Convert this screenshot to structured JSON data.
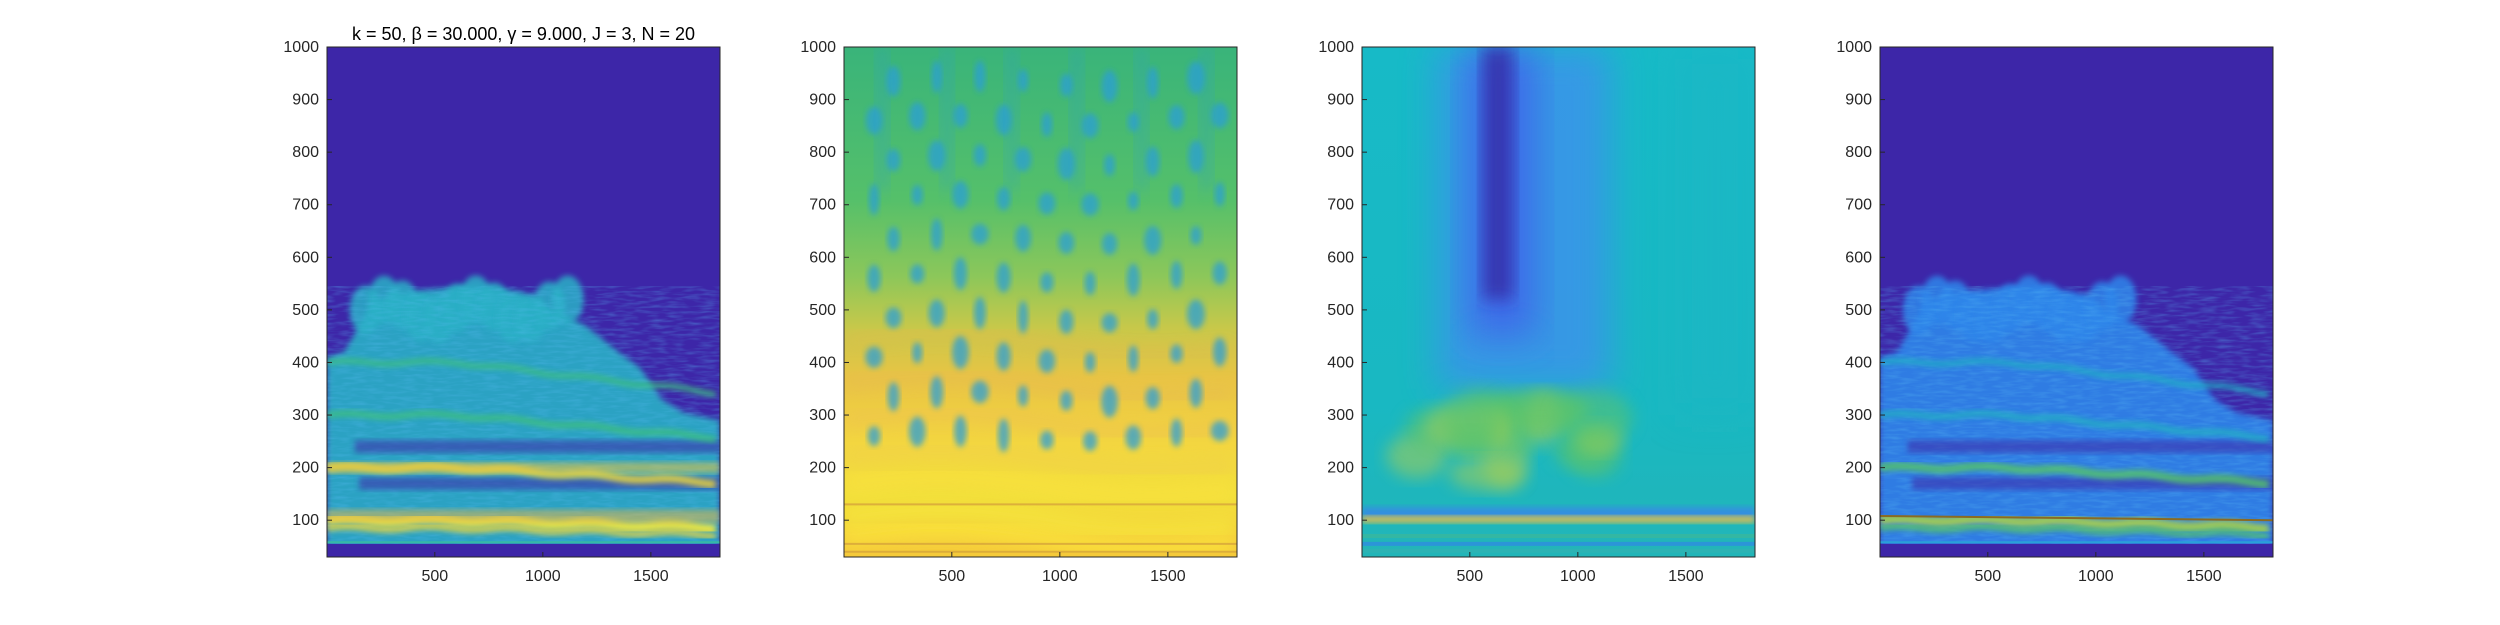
{
  "figure": {
    "title": "k = 50, β = 30.000, γ = 9.000, J = 3, N = 20"
  },
  "chart_data": [
    {
      "type": "heatmap",
      "title": "k = 50, β = 30.000, γ = 9.000, J = 3, N = 20",
      "xlim": [
        1,
        1820
      ],
      "ylim": [
        30,
        1000
      ],
      "xticks": [
        500,
        1000,
        1500
      ],
      "yticks": [
        100,
        200,
        300,
        400,
        500,
        600,
        700,
        800,
        900,
        1000
      ],
      "background_color": "#3d26a8",
      "colormap": "parula",
      "content": "spectrogram",
      "grid": false,
      "legend": "none"
    },
    {
      "type": "heatmap",
      "title": "",
      "xlim": [
        1,
        1820
      ],
      "ylim": [
        30,
        1000
      ],
      "xticks": [
        500,
        1000,
        1500
      ],
      "yticks": [
        100,
        200,
        300,
        400,
        500,
        600,
        700,
        800,
        900,
        1000
      ],
      "background_color": "#5ec962",
      "colormap": "parula",
      "content": "smoothed spectrogram",
      "grid": false,
      "legend": "none"
    },
    {
      "type": "heatmap",
      "title": "",
      "xlim": [
        1,
        1820
      ],
      "ylim": [
        30,
        1000
      ],
      "xticks": [
        500,
        1000,
        1500
      ],
      "yticks": [
        100,
        200,
        300,
        400,
        500,
        600,
        700,
        800,
        900,
        1000
      ],
      "background_color": "#1bb3c7",
      "colormap": "parula",
      "content": "difference map",
      "grid": false,
      "legend": "none"
    },
    {
      "type": "heatmap",
      "title": "",
      "xlim": [
        1,
        1820
      ],
      "ylim": [
        30,
        1000
      ],
      "xticks": [
        500,
        1000,
        1500
      ],
      "yticks": [
        100,
        200,
        300,
        400,
        500,
        600,
        700,
        800,
        900,
        1000
      ],
      "background_color": "#3d26a8",
      "colormap": "parula",
      "content": "thresholded spectrogram",
      "grid": false,
      "legend": "none"
    }
  ]
}
